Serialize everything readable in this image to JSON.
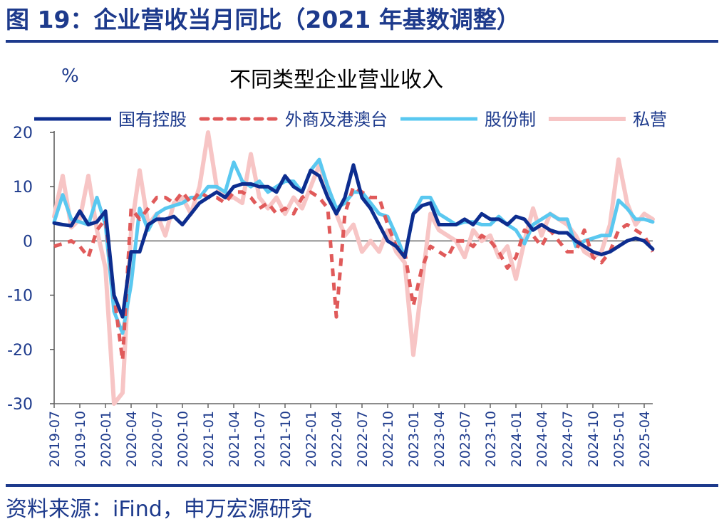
{
  "figure": {
    "title": "图 19：企业营收当月同比（2021 年基数调整）",
    "source": "资料来源：iFind，申万宏源研究"
  },
  "colors": {
    "accent": "#1d3a8c",
    "soe": "#0d2d8f",
    "foreign": "#e05a5a",
    "shareholding": "#5ac8f0",
    "private": "#f7c5c5"
  },
  "chart_data": {
    "type": "line",
    "title": "不同类型企业营业收入",
    "ylabel": "%",
    "xlabel": "",
    "ylim": [
      -30,
      20
    ],
    "yticks": [
      20,
      10,
      0,
      -10,
      -20,
      -30
    ],
    "xticks": [
      "2019-07",
      "2019-10",
      "2020-01",
      "2020-04",
      "2020-07",
      "2020-10",
      "2021-01",
      "2021-04",
      "2021-07",
      "2021-10",
      "2022-01",
      "2022-04",
      "2022-07",
      "2022-10",
      "2023-01",
      "2023-04",
      "2023-07",
      "2023-10",
      "2024-01",
      "2024-04",
      "2024-07",
      "2024-10",
      "2025-01",
      "2025-04"
    ],
    "x": [
      "2019-07",
      "2019-08",
      "2019-09",
      "2019-10",
      "2019-11",
      "2019-12",
      "2020-01",
      "2020-02",
      "2020-03",
      "2020-04",
      "2020-05",
      "2020-06",
      "2020-07",
      "2020-08",
      "2020-09",
      "2020-10",
      "2020-11",
      "2020-12",
      "2021-01",
      "2021-02",
      "2021-03",
      "2021-04",
      "2021-05",
      "2021-06",
      "2021-07",
      "2021-08",
      "2021-09",
      "2021-10",
      "2021-11",
      "2021-12",
      "2022-01",
      "2022-02",
      "2022-03",
      "2022-04",
      "2022-05",
      "2022-06",
      "2022-07",
      "2022-08",
      "2022-09",
      "2022-10",
      "2022-11",
      "2022-12",
      "2023-01",
      "2023-02",
      "2023-03",
      "2023-04",
      "2023-05",
      "2023-06",
      "2023-07",
      "2023-08",
      "2023-09",
      "2023-10",
      "2023-11",
      "2023-12",
      "2024-01",
      "2024-02",
      "2024-03",
      "2024-04",
      "2024-05",
      "2024-06",
      "2024-07",
      "2024-08",
      "2024-09",
      "2024-10",
      "2024-11",
      "2024-12",
      "2025-01",
      "2025-02",
      "2025-03",
      "2025-04",
      "2025-05"
    ],
    "grid": false,
    "legend_position": "top",
    "series": [
      {
        "name": "国有控股",
        "style": "solid",
        "width": 5,
        "values": [
          3.3,
          3.0,
          2.8,
          5.5,
          3.0,
          3.5,
          5.5,
          -10,
          -14,
          -2,
          -2,
          3,
          4,
          4,
          4.5,
          3,
          5,
          7,
          8,
          9,
          8,
          10,
          10.5,
          10.5,
          10,
          10,
          9,
          12,
          10,
          9,
          13,
          12,
          8,
          5,
          8,
          14,
          8,
          6,
          3,
          0,
          -1,
          -3,
          5,
          6.5,
          7,
          3,
          3,
          3,
          4,
          3,
          5,
          4,
          4,
          3,
          4.5,
          4,
          2,
          3,
          2,
          1.5,
          1.5,
          0,
          -1,
          -2,
          -2.5,
          -2,
          -1,
          0,
          0.5,
          0,
          -1.5
        ]
      },
      {
        "name": "外商及港澳台",
        "style": "dashed",
        "width": 5,
        "values": [
          -1,
          -0.5,
          0,
          -1,
          -3,
          2,
          4,
          -10,
          -22,
          6,
          4,
          6,
          8,
          8,
          7,
          9,
          7,
          9,
          8,
          8,
          7,
          9,
          9,
          8,
          6,
          7,
          5,
          6,
          5,
          8,
          9,
          8,
          6,
          -14,
          5,
          10,
          9,
          8,
          8,
          3,
          -1,
          -2,
          -12,
          -5,
          -1,
          -2,
          -3,
          0,
          0,
          -1,
          1,
          0,
          -2,
          -5,
          -3,
          2,
          1,
          -1,
          2,
          0,
          -2,
          -2,
          2,
          -3,
          -4,
          -2,
          2,
          3,
          2,
          1,
          -2
        ]
      },
      {
        "name": "股份制",
        "style": "solid",
        "width": 5,
        "values": [
          3.5,
          8.5,
          4,
          3.5,
          3,
          8,
          3,
          -13,
          -17,
          -8,
          6,
          2,
          5,
          6,
          6.5,
          7,
          8,
          8,
          10,
          10,
          9,
          14.5,
          11,
          10,
          11,
          9,
          10,
          11,
          11,
          9,
          13,
          15,
          10,
          6,
          7,
          9,
          9,
          7,
          5,
          4.5,
          1,
          -3,
          5,
          8,
          8,
          5,
          4,
          3,
          3.5,
          3.5,
          3,
          3,
          4.5,
          3,
          2,
          -0.5,
          3,
          4,
          5,
          4,
          4,
          -1,
          0,
          0.5,
          1,
          1,
          7.5,
          6,
          4,
          4,
          3.5
        ]
      },
      {
        "name": "私营",
        "style": "solid",
        "width": 6,
        "values": [
          4.5,
          12,
          2.5,
          4,
          12,
          2,
          -5,
          -30,
          -28,
          2,
          13,
          3,
          5,
          1,
          7,
          8,
          5,
          10,
          20,
          10,
          8,
          8,
          7,
          16,
          8,
          6,
          8,
          5,
          8,
          6,
          10,
          14,
          10,
          5,
          1,
          3,
          -2,
          0,
          -2,
          2,
          -2,
          -4,
          -21,
          -8,
          5,
          2,
          1,
          0,
          -3,
          2,
          0,
          1,
          -3,
          -1,
          -7,
          0,
          6,
          1,
          5,
          4,
          3,
          1,
          -2,
          -3,
          -2,
          3,
          15,
          7,
          3,
          5,
          4
        ]
      }
    ]
  }
}
